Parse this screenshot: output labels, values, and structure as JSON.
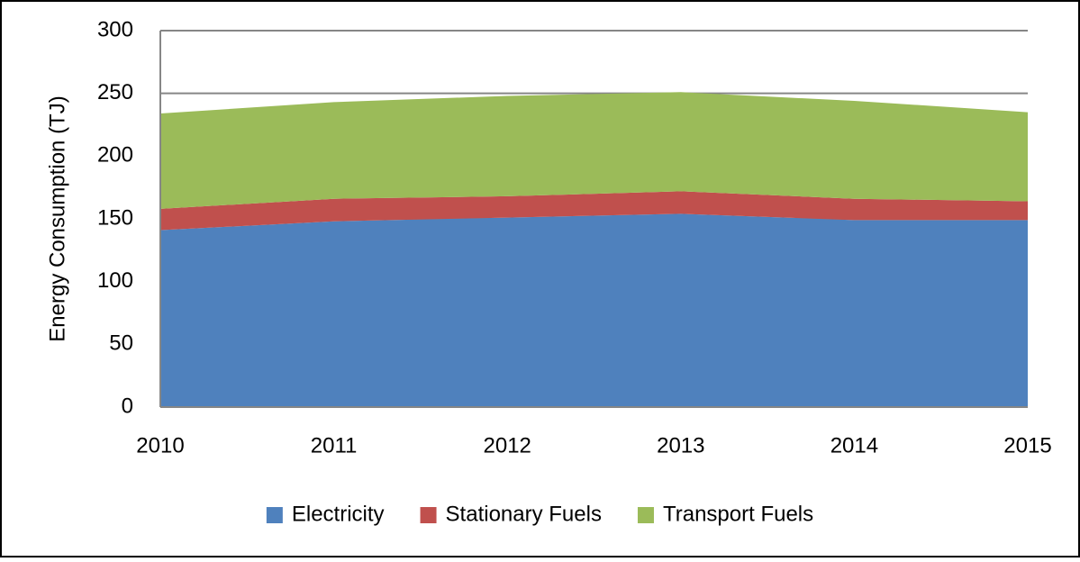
{
  "chart_data": {
    "type": "stacked_area",
    "ylabel": "Energy Consumption (TJ)",
    "x": [
      "2010",
      "2011",
      "2012",
      "2013",
      "2014",
      "2015"
    ],
    "series": [
      {
        "name": "Electricity",
        "color": "#4f81bd",
        "values": [
          141,
          148,
          151,
          154,
          149,
          149
        ]
      },
      {
        "name": "Stationary Fuels",
        "color": "#c0504d",
        "values": [
          17,
          18,
          17,
          18,
          17,
          15
        ]
      },
      {
        "name": "Transport Fuels",
        "color": "#9bbb59",
        "values": [
          76,
          77,
          80,
          79,
          78,
          71
        ]
      }
    ],
    "ylim": [
      0,
      300
    ],
    "yticks": [
      0,
      50,
      100,
      150,
      200,
      250,
      300
    ],
    "grid": true,
    "legend": "bottom"
  }
}
